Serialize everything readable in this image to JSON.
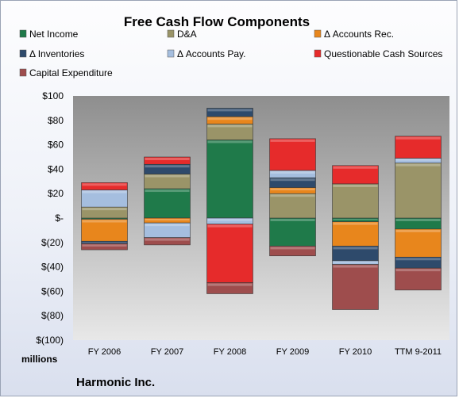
{
  "chart_data": {
    "type": "bar",
    "stacked": true,
    "title": "Free Cash Flow Components",
    "ylabel": "millions",
    "footer": "Harmonic Inc.",
    "categories": [
      "FY 2006",
      "FY 2007",
      "FY 2008",
      "FY 2009",
      "FY 2010",
      "TTM 9-2011"
    ],
    "ylim": [
      -100,
      100
    ],
    "yticks": [
      100,
      80,
      60,
      40,
      20,
      0,
      -20,
      -40,
      -60,
      -80,
      -100
    ],
    "ytick_labels": [
      "$100",
      "$80",
      "$60",
      "$40",
      "$20",
      "$-",
      "$(20)",
      "$(40)",
      "$(60)",
      "$(80)",
      "$(100)"
    ],
    "grid": false,
    "legend_position": "top",
    "series": [
      {
        "name": "Net Income",
        "color": "#1f7a4a",
        "values": [
          -1,
          24,
          64,
          -23,
          -3,
          -9
        ]
      },
      {
        "name": "D&A",
        "color": "#9a9468",
        "values": [
          9,
          12,
          13,
          20,
          28,
          45
        ]
      },
      {
        "name": "Δ Accounts Rec.",
        "color": "#e8861c",
        "values": [
          -18,
          -4,
          6,
          5,
          -20,
          -23
        ]
      },
      {
        "name": "Δ Inventories",
        "color": "#2e4a6b",
        "values": [
          -2,
          8,
          7,
          8,
          -12,
          -9
        ]
      },
      {
        "name": "Δ Accounts Pay.",
        "color": "#a5bedf",
        "values": [
          14,
          -12,
          -5,
          6,
          -3,
          4
        ]
      },
      {
        "name": "Questionable Cash Sources",
        "color": "#e62b2b",
        "values": [
          6,
          6,
          -48,
          26,
          15,
          18
        ]
      },
      {
        "name": "Capital Expenditure",
        "color": "#9e4d4d",
        "values": [
          -5,
          -6,
          -9,
          -8,
          -37,
          -18
        ]
      }
    ]
  }
}
